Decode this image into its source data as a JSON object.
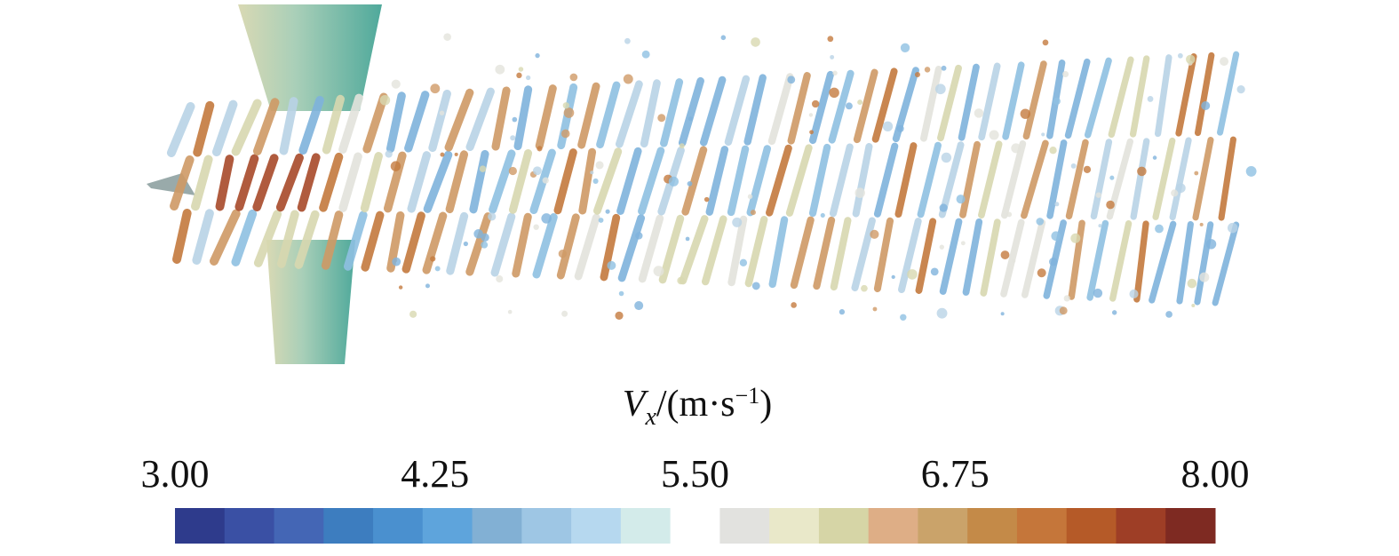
{
  "colorbar": {
    "label": {
      "symbol": "V",
      "subscript": "x",
      "unit": "/(m·s",
      "exponent": "−1",
      "close": ")"
    },
    "range": [
      3,
      8
    ],
    "ticks": [
      {
        "value": 3,
        "label": "3.00"
      },
      {
        "value": 4.25,
        "label": "4.25"
      },
      {
        "value": 5.5,
        "label": "5.50"
      },
      {
        "value": 6.75,
        "label": "6.75"
      },
      {
        "value": 8,
        "label": "8.00"
      }
    ],
    "colors": [
      "#2e3b8c",
      "#3a50a4",
      "#4466b5",
      "#3d7dbf",
      "#4a90cf",
      "#5ea4dc",
      "#82b0d4",
      "#9ec6e4",
      "#b6d8ef",
      "#d3ebea",
      "#ffffff",
      "#e2e2df",
      "#e9e8c9",
      "#d6d5a6",
      "#deae86",
      "#caa36a",
      "#c48a48",
      "#c5763a",
      "#b55a28",
      "#9e3e26",
      "#7e2a22"
    ]
  }
}
